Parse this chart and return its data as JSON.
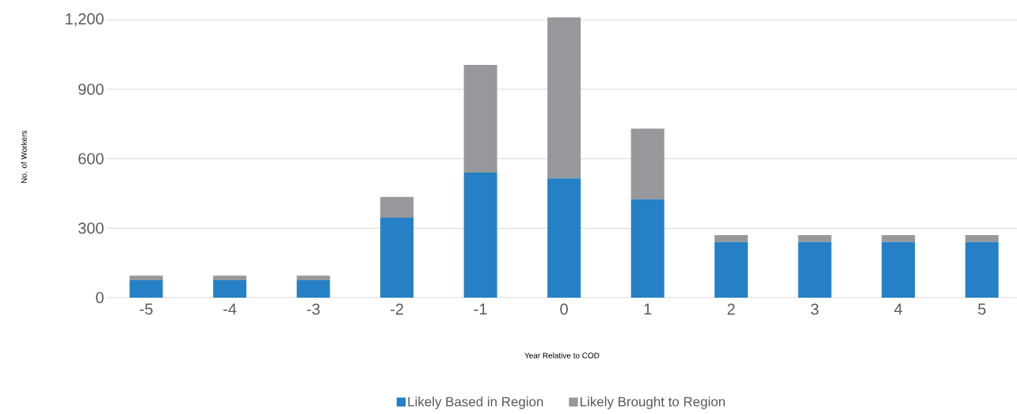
{
  "chart_data": {
    "type": "bar",
    "stacked": true,
    "categories": [
      "-5",
      "-4",
      "-3",
      "-2",
      "-1",
      "0",
      "1",
      "2",
      "3",
      "4",
      "5"
    ],
    "xlabel": "Year Relative to COD",
    "ylabel": "No. of Workers",
    "series": [
      {
        "name": "Likely Based in Region",
        "color": "#2680c5",
        "values": [
          75,
          75,
          75,
          345,
          540,
          515,
          425,
          240,
          240,
          240,
          240
        ]
      },
      {
        "name": "Likely Brought to Region",
        "color": "#96989b",
        "values": [
          20,
          20,
          20,
          90,
          465,
          695,
          305,
          30,
          30,
          30,
          30
        ]
      }
    ],
    "ylim": [
      0,
      1215
    ],
    "yticks": [
      0,
      {
        "value": 300,
        "label": "300"
      },
      {
        "value": 600,
        "label": "600"
      },
      {
        "value": 900,
        "label": "900"
      },
      {
        "value": 1200,
        "label": "1,200"
      }
    ],
    "grid": "y",
    "legend": "bottom"
  }
}
